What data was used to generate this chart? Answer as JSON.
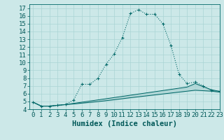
{
  "title": "",
  "xlabel": "Humidex (Indice chaleur)",
  "bg_color": "#cce8e8",
  "line_color": "#006868",
  "xlim": [
    -0.5,
    23
  ],
  "ylim": [
    4,
    17.5
  ],
  "xticks": [
    0,
    1,
    2,
    3,
    4,
    5,
    6,
    7,
    8,
    9,
    10,
    11,
    12,
    13,
    14,
    15,
    16,
    17,
    18,
    19,
    20,
    21,
    22,
    23
  ],
  "yticks": [
    4,
    5,
    6,
    7,
    8,
    9,
    10,
    11,
    12,
    13,
    14,
    15,
    16,
    17
  ],
  "curve1_x": [
    0,
    1,
    2,
    3,
    4,
    5,
    6,
    7,
    8,
    9,
    10,
    11,
    12,
    13,
    14,
    15,
    16,
    17,
    18,
    19,
    20,
    21,
    22,
    23
  ],
  "curve1_y": [
    4.9,
    4.4,
    4.4,
    4.5,
    4.6,
    5.2,
    7.2,
    7.2,
    8.0,
    9.8,
    11.1,
    13.2,
    16.3,
    16.8,
    16.2,
    16.2,
    15.0,
    12.2,
    8.5,
    7.3,
    7.5,
    7.0,
    6.4,
    6.3
  ],
  "curve2_x": [
    0,
    1,
    2,
    3,
    4,
    5,
    6,
    7,
    8,
    9,
    10,
    11,
    12,
    13,
    14,
    15,
    16,
    17,
    18,
    19,
    20,
    21,
    22,
    23
  ],
  "curve2_y": [
    4.9,
    4.4,
    4.4,
    4.5,
    4.6,
    4.75,
    4.9,
    5.05,
    5.2,
    5.35,
    5.5,
    5.65,
    5.8,
    5.95,
    6.1,
    6.25,
    6.4,
    6.55,
    6.7,
    6.85,
    7.3,
    6.9,
    6.5,
    6.3
  ],
  "curve3_x": [
    0,
    1,
    2,
    3,
    4,
    5,
    6,
    7,
    8,
    9,
    10,
    11,
    12,
    13,
    14,
    15,
    16,
    17,
    18,
    19,
    20,
    21,
    22,
    23
  ],
  "curve3_y": [
    4.9,
    4.4,
    4.4,
    4.5,
    4.6,
    4.68,
    4.78,
    4.88,
    4.98,
    5.1,
    5.22,
    5.35,
    5.48,
    5.6,
    5.72,
    5.84,
    5.96,
    6.08,
    6.2,
    6.32,
    6.44,
    6.38,
    6.32,
    6.2
  ],
  "grid_color": "#aad4d4",
  "font_color": "#005858",
  "font_size": 6.5,
  "xlabel_fontsize": 7.5,
  "marker": "+",
  "marker_size": 3.5,
  "linewidth": 0.8,
  "linewidth_thin": 0.7
}
